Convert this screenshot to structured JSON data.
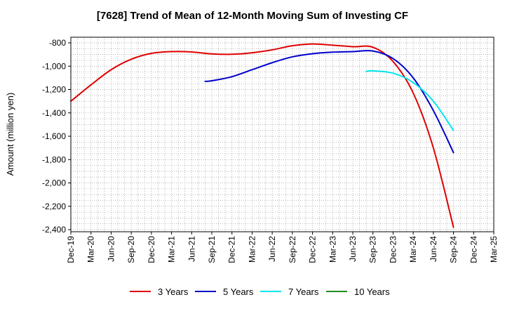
{
  "chart_data": {
    "type": "line",
    "title": "[7628]  Trend of Mean of 12-Month Moving Sum of Investing CF",
    "xlabel": "",
    "ylabel": "Amount (million yen)",
    "ylim": [
      -2400,
      -800
    ],
    "yticks": [
      -800,
      -1000,
      -1200,
      -1400,
      -1600,
      -1800,
      -2000,
      -2200,
      -2400
    ],
    "ytick_labels": [
      "-800",
      "-1,000",
      "-1,200",
      "-1,400",
      "-1,600",
      "-1,800",
      "-2,000",
      "-2,200",
      "-2,400"
    ],
    "x_tick_labels": [
      "Dec-19",
      "Mar-20",
      "Jun-20",
      "Sep-20",
      "Dec-20",
      "Mar-21",
      "Jun-21",
      "Sep-21",
      "Dec-21",
      "Mar-22",
      "Jun-22",
      "Sep-22",
      "Dec-22",
      "Mar-23",
      "Jun-23",
      "Sep-23",
      "Dec-23",
      "Mar-24",
      "Jun-24",
      "Sep-24",
      "Dec-24",
      "Mar-25"
    ],
    "x_range_months": [
      0,
      63
    ],
    "grid": true,
    "legend_position": "bottom",
    "series": [
      {
        "name": "3 Years",
        "color": "#e00000",
        "x": [
          0,
          3,
          6,
          9,
          12,
          15,
          18,
          21,
          24,
          27,
          30,
          33,
          36,
          39,
          42,
          45,
          48,
          51,
          54,
          57
        ],
        "values": [
          -1300,
          -1160,
          -1030,
          -940,
          -890,
          -875,
          -878,
          -895,
          -898,
          -885,
          -860,
          -825,
          -810,
          -820,
          -833,
          -838,
          -960,
          -1230,
          -1700,
          -2380
        ]
      },
      {
        "name": "5 Years",
        "color": "#0000cc",
        "x": [
          20,
          21,
          24,
          27,
          30,
          33,
          36,
          39,
          42,
          45,
          48,
          51,
          54,
          57
        ],
        "values": [
          -1130,
          -1125,
          -1090,
          -1030,
          -970,
          -920,
          -893,
          -880,
          -875,
          -870,
          -935,
          -1100,
          -1380,
          -1740
        ]
      },
      {
        "name": "7 Years",
        "color": "#00e5ee",
        "x": [
          44,
          45,
          48,
          51,
          54,
          57
        ],
        "values": [
          -1045,
          -1040,
          -1060,
          -1140,
          -1300,
          -1550
        ]
      },
      {
        "name": "10 Years",
        "color": "#228b22",
        "x": [],
        "values": []
      }
    ]
  }
}
